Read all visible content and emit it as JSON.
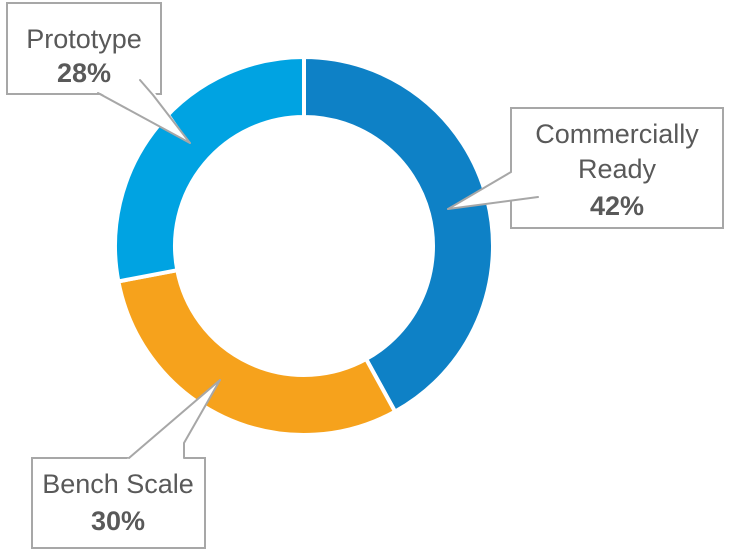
{
  "chart_data": {
    "type": "donut",
    "direction": "clockwise",
    "start_angle_deg": 0,
    "inner_radius_ratio": 0.68,
    "legend_position": "none",
    "separator_color": "#ffffff",
    "segments": [
      {
        "label": "Commercially Ready",
        "value": 42,
        "unit": "%",
        "color": "#0e81c6"
      },
      {
        "label": "Bench Scale",
        "value": 30,
        "unit": "%",
        "color": "#f6a21c"
      },
      {
        "label": "Prototype",
        "value": 28,
        "unit": "%",
        "color": "#00a3e2"
      }
    ]
  },
  "callouts": {
    "prototype": {
      "lines": [
        "Prototype"
      ],
      "pct": "28%"
    },
    "commercially_ready": {
      "lines": [
        "Commercially",
        "Ready"
      ],
      "pct": "42%"
    },
    "bench_scale": {
      "lines": [
        "Bench Scale"
      ],
      "pct": "30%"
    }
  },
  "styles": {
    "background": "#ffffff",
    "label_color": "#595959",
    "callout_border": "#a7a7a7",
    "callout_fill": "#ffffff"
  }
}
